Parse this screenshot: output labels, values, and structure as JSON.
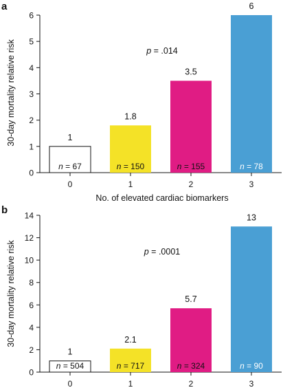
{
  "chart_data": [
    {
      "type": "bar",
      "panel": "a",
      "xlabel": "No. of elevated cardiac biomarkers",
      "ylabel": "30-day mortality relative risk",
      "annotation": "p = .014",
      "annotation_italic": "p",
      "annotation_rest": " = .014",
      "categories": [
        "0",
        "1",
        "2",
        "3"
      ],
      "values": [
        1,
        1.8,
        3.5,
        6
      ],
      "value_labels": [
        "1",
        "1.8",
        "3.5",
        "6"
      ],
      "n_labels": [
        "= 67",
        "= 150",
        "= 155",
        "= 78"
      ],
      "n_prefix": "n",
      "ylim": [
        0,
        6
      ],
      "yticks": [
        "0",
        "1",
        "2",
        "3",
        "4",
        "5",
        "6"
      ],
      "colors": [
        "#ffffff",
        "#f4e227",
        "#e01c84",
        "#4a9fd4"
      ],
      "n_label_colors": [
        "#111111",
        "#111111",
        "#111111",
        "#ffffff"
      ]
    },
    {
      "type": "bar",
      "panel": "b",
      "xlabel": "",
      "ylabel": "30-day mortality relative risk",
      "annotation": "p = .0001",
      "annotation_italic": "p",
      "annotation_rest": " = .0001",
      "categories": [
        "0",
        "1",
        "2",
        "3"
      ],
      "values": [
        1,
        2.1,
        5.7,
        13
      ],
      "value_labels": [
        "1",
        "2.1",
        "5.7",
        "13"
      ],
      "n_labels": [
        "= 504",
        "= 717",
        "= 324",
        "= 90"
      ],
      "n_prefix": "n",
      "ylim": [
        0,
        14
      ],
      "yticks": [
        "0",
        "2",
        "4",
        "6",
        "8",
        "10",
        "12",
        "14"
      ],
      "colors": [
        "#ffffff",
        "#f4e227",
        "#e01c84",
        "#4a9fd4"
      ],
      "n_label_colors": [
        "#111111",
        "#111111",
        "#111111",
        "#ffffff"
      ]
    }
  ]
}
